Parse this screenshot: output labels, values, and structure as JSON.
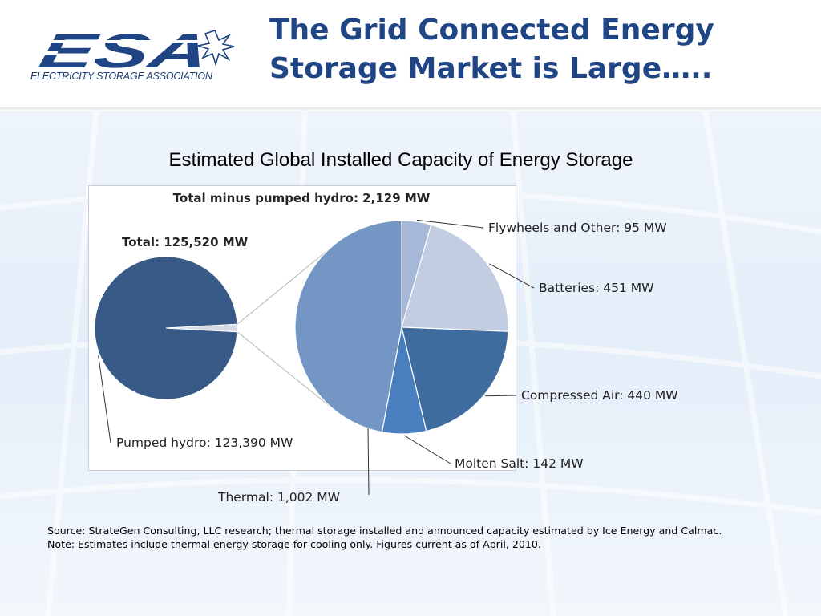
{
  "header": {
    "logo_text": "ESA",
    "logo_subtitle": "ELECTRICITY STORAGE ASSOCIATION",
    "title_line1": "The Grid Connected Energy",
    "title_line2": "Storage Market is Large….."
  },
  "chart_heading": "Estimated Global Installed Capacity of Energy Storage",
  "chart_data": {
    "type": "pie",
    "title": "Estimated Global Installed Capacity of Energy Storage",
    "main_pie": {
      "total_label": "Total: 125,520 MW",
      "slices": [
        {
          "name": "Pumped hydro",
          "value": 123390,
          "label": "Pumped hydro: 123,390 MW",
          "color": "#375a87"
        },
        {
          "name": "Other",
          "value": 2129,
          "color": "#d7dbe4"
        }
      ]
    },
    "detail_pie": {
      "total_label": "Total minus pumped hydro: 2,129 MW",
      "slices": [
        {
          "name": "Flywheels and Other",
          "value": 95,
          "label": "Flywheels and Other: 95 MW",
          "color": "#a5b8d8"
        },
        {
          "name": "Batteries",
          "value": 451,
          "label": "Batteries: 451 MW",
          "color": "#c3cde2"
        },
        {
          "name": "Compressed Air",
          "value": 440,
          "label": "Compressed Air: 440 MW",
          "color": "#3f6c9f"
        },
        {
          "name": "Molten Salt",
          "value": 142,
          "label": "Molten Salt: 142 MW",
          "color": "#4a7fbf"
        },
        {
          "name": "Thermal",
          "value": 1002,
          "label": "Thermal: 1,002 MW",
          "color": "#7496c5"
        }
      ]
    }
  },
  "source": {
    "line1": "Source:  StrateGen Consulting, LLC research; thermal storage installed and announced capacity estimated by Ice Energy and Calmac.",
    "line2": "Note: Estimates include thermal energy storage for cooling only.  Figures current as of April, 2010."
  }
}
